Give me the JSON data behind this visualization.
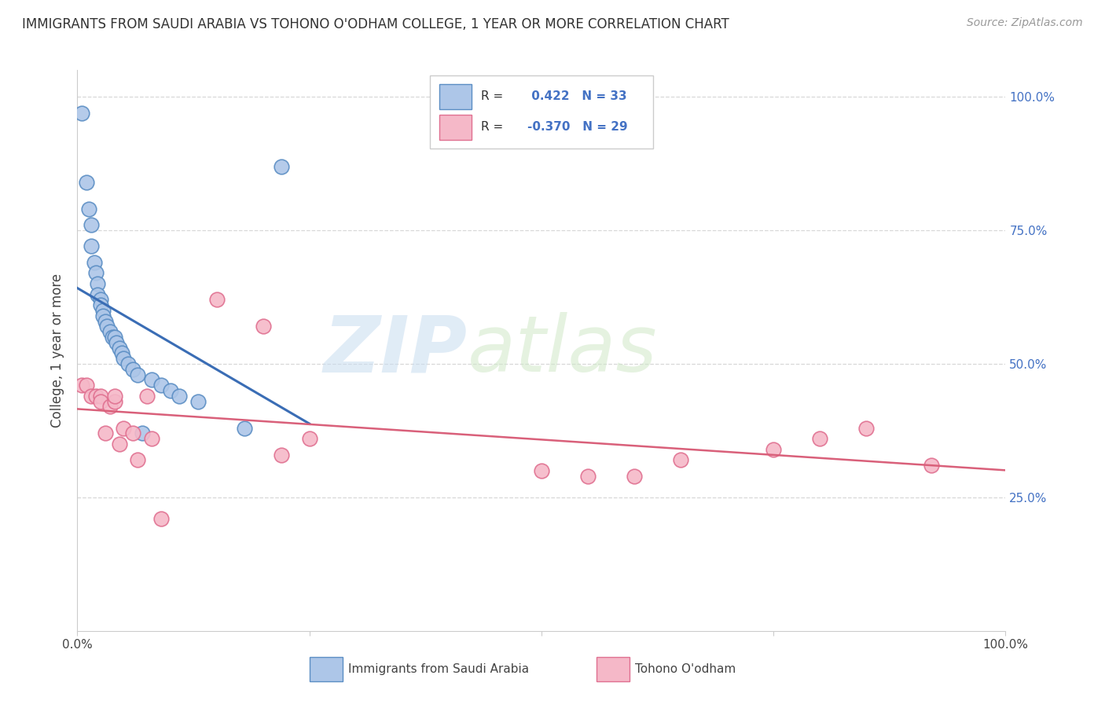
{
  "title": "IMMIGRANTS FROM SAUDI ARABIA VS TOHONO O'ODHAM COLLEGE, 1 YEAR OR MORE CORRELATION CHART",
  "source": "Source: ZipAtlas.com",
  "ylabel": "College, 1 year or more",
  "right_yticks": [
    "100.0%",
    "75.0%",
    "50.0%",
    "25.0%"
  ],
  "right_ytick_vals": [
    1.0,
    0.75,
    0.5,
    0.25
  ],
  "xlim": [
    0.0,
    1.0
  ],
  "ylim": [
    0.0,
    1.05
  ],
  "blue_r": 0.422,
  "blue_n": 33,
  "pink_r": -0.37,
  "pink_n": 29,
  "blue_color": "#adc6e8",
  "blue_edge_color": "#5b8ec4",
  "blue_line_color": "#3a6db5",
  "pink_color": "#f5b8c8",
  "pink_edge_color": "#e07090",
  "pink_line_color": "#d9607a",
  "grid_color": "#d8d8d8",
  "background_color": "#ffffff",
  "blue_scatter_x": [
    0.005,
    0.01,
    0.012,
    0.015,
    0.015,
    0.018,
    0.02,
    0.022,
    0.022,
    0.025,
    0.025,
    0.028,
    0.028,
    0.03,
    0.032,
    0.035,
    0.038,
    0.04,
    0.042,
    0.045,
    0.048,
    0.05,
    0.055,
    0.06,
    0.065,
    0.07,
    0.08,
    0.09,
    0.1,
    0.11,
    0.13,
    0.18,
    0.22
  ],
  "blue_scatter_y": [
    0.97,
    0.84,
    0.79,
    0.76,
    0.72,
    0.69,
    0.67,
    0.65,
    0.63,
    0.62,
    0.61,
    0.6,
    0.59,
    0.58,
    0.57,
    0.56,
    0.55,
    0.55,
    0.54,
    0.53,
    0.52,
    0.51,
    0.5,
    0.49,
    0.48,
    0.37,
    0.47,
    0.46,
    0.45,
    0.44,
    0.43,
    0.38,
    0.87
  ],
  "pink_scatter_x": [
    0.005,
    0.01,
    0.015,
    0.02,
    0.025,
    0.025,
    0.03,
    0.035,
    0.04,
    0.04,
    0.045,
    0.05,
    0.06,
    0.065,
    0.075,
    0.08,
    0.09,
    0.15,
    0.2,
    0.22,
    0.25,
    0.5,
    0.55,
    0.6,
    0.65,
    0.75,
    0.8,
    0.85,
    0.92
  ],
  "pink_scatter_y": [
    0.46,
    0.46,
    0.44,
    0.44,
    0.44,
    0.43,
    0.37,
    0.42,
    0.43,
    0.44,
    0.35,
    0.38,
    0.37,
    0.32,
    0.44,
    0.36,
    0.21,
    0.62,
    0.57,
    0.33,
    0.36,
    0.3,
    0.29,
    0.29,
    0.32,
    0.34,
    0.36,
    0.38,
    0.31
  ]
}
